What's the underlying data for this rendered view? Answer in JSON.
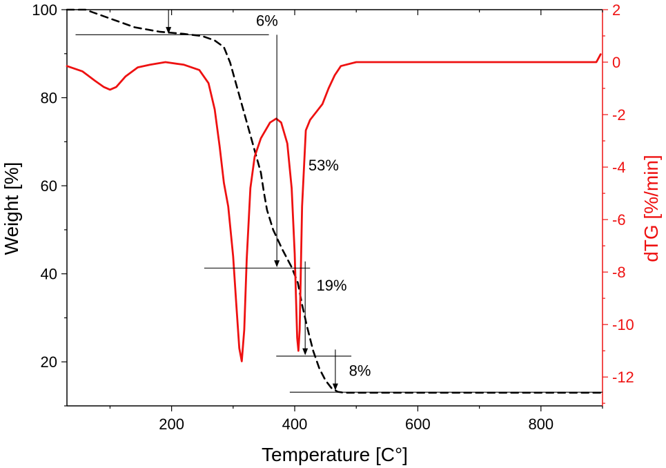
{
  "chart_data": {
    "type": "line",
    "xlabel": "Temperature [C°]",
    "ylabel_left": "Weight [%]",
    "ylabel_right": "dTG [%/min]",
    "xlim": [
      30,
      900
    ],
    "ylim_left": [
      10,
      100
    ],
    "ylim_right": [
      -13.1,
      2
    ],
    "x_ticks": [
      200,
      400,
      600,
      800
    ],
    "y_left_ticks": [
      20,
      40,
      60,
      80,
      100
    ],
    "y_right_ticks": [
      -12,
      -10,
      -8,
      -6,
      -4,
      -2,
      0,
      2
    ],
    "colors": {
      "weight": "#000000",
      "dtg": "#ee1111",
      "right_axis": "#ee1111"
    },
    "series": [
      {
        "axis": "left",
        "style": "dashed",
        "color": "#000000",
        "x": [
          30,
          60,
          100,
          140,
          180,
          220,
          250,
          270,
          285,
          295,
          305,
          315,
          325,
          335,
          345,
          350,
          355,
          365,
          380,
          395,
          405,
          412,
          420,
          430,
          440,
          450,
          460,
          470,
          480,
          490,
          520,
          600,
          700,
          800,
          900
        ],
        "y": [
          100,
          100,
          98,
          96,
          95,
          94.5,
          94,
          93,
          91.5,
          88,
          83,
          78,
          73,
          68,
          63,
          58.5,
          54.5,
          50,
          45.5,
          41.5,
          38,
          33,
          28,
          22.5,
          18.5,
          15.8,
          14,
          13.2,
          13,
          13,
          13,
          13,
          13,
          13,
          13
        ]
      },
      {
        "axis": "right",
        "style": "solid",
        "color": "#ee1111",
        "x": [
          30,
          55,
          75,
          90,
          100,
          110,
          125,
          145,
          165,
          190,
          220,
          245,
          260,
          270,
          278,
          285,
          292,
          300,
          305,
          310,
          314,
          318,
          322,
          328,
          335,
          345,
          360,
          370,
          378,
          388,
          395,
          400,
          404,
          406,
          408,
          412,
          418,
          425,
          435,
          445,
          455,
          465,
          475,
          500,
          600,
          700,
          800,
          890,
          897
        ],
        "y": [
          -0.15,
          -0.35,
          -0.7,
          -0.95,
          -1.05,
          -0.95,
          -0.55,
          -0.2,
          -0.1,
          0,
          -0.1,
          -0.3,
          -0.8,
          -1.8,
          -3.2,
          -4.6,
          -5.5,
          -7.4,
          -9.2,
          -10.9,
          -11.4,
          -10.2,
          -7.5,
          -4.8,
          -3.6,
          -2.9,
          -2.3,
          -2.15,
          -2.3,
          -3.1,
          -4.8,
          -7.3,
          -10.5,
          -11.0,
          -10.2,
          -5.5,
          -2.6,
          -2.2,
          -1.9,
          -1.6,
          -1.0,
          -0.5,
          -0.15,
          0,
          0,
          0,
          0,
          0,
          0.3
        ]
      }
    ],
    "annotations": [
      {
        "text": "6%",
        "x": 355,
        "y": 96.3
      },
      {
        "text": "53%",
        "x": 447,
        "y": 63.5
      },
      {
        "text": "19%",
        "x": 460,
        "y": 36.2
      },
      {
        "text": "8%",
        "x": 506,
        "y": 16.8
      }
    ],
    "step_markers": [
      {
        "h_from": 44,
        "h_to": 358,
        "h_y": 94.3,
        "arrow_x": 195,
        "arrow_from": 100,
        "arrow_to": 94.5
      },
      {
        "h_from": 253,
        "h_to": 425,
        "h_y": 41.3,
        "arrow_x": 371,
        "arrow_from": 94.3,
        "arrow_to": 41.5
      },
      {
        "h_from": 370,
        "h_to": 492,
        "h_y": 21.3,
        "arrow_x": 417,
        "arrow_from": 42.8,
        "arrow_to": 21.5
      },
      {
        "h_from": 392,
        "h_to": 900,
        "h_y": 13.1,
        "arrow_x": 466,
        "arrow_from": 22.8,
        "arrow_to": 13.5
      }
    ]
  }
}
